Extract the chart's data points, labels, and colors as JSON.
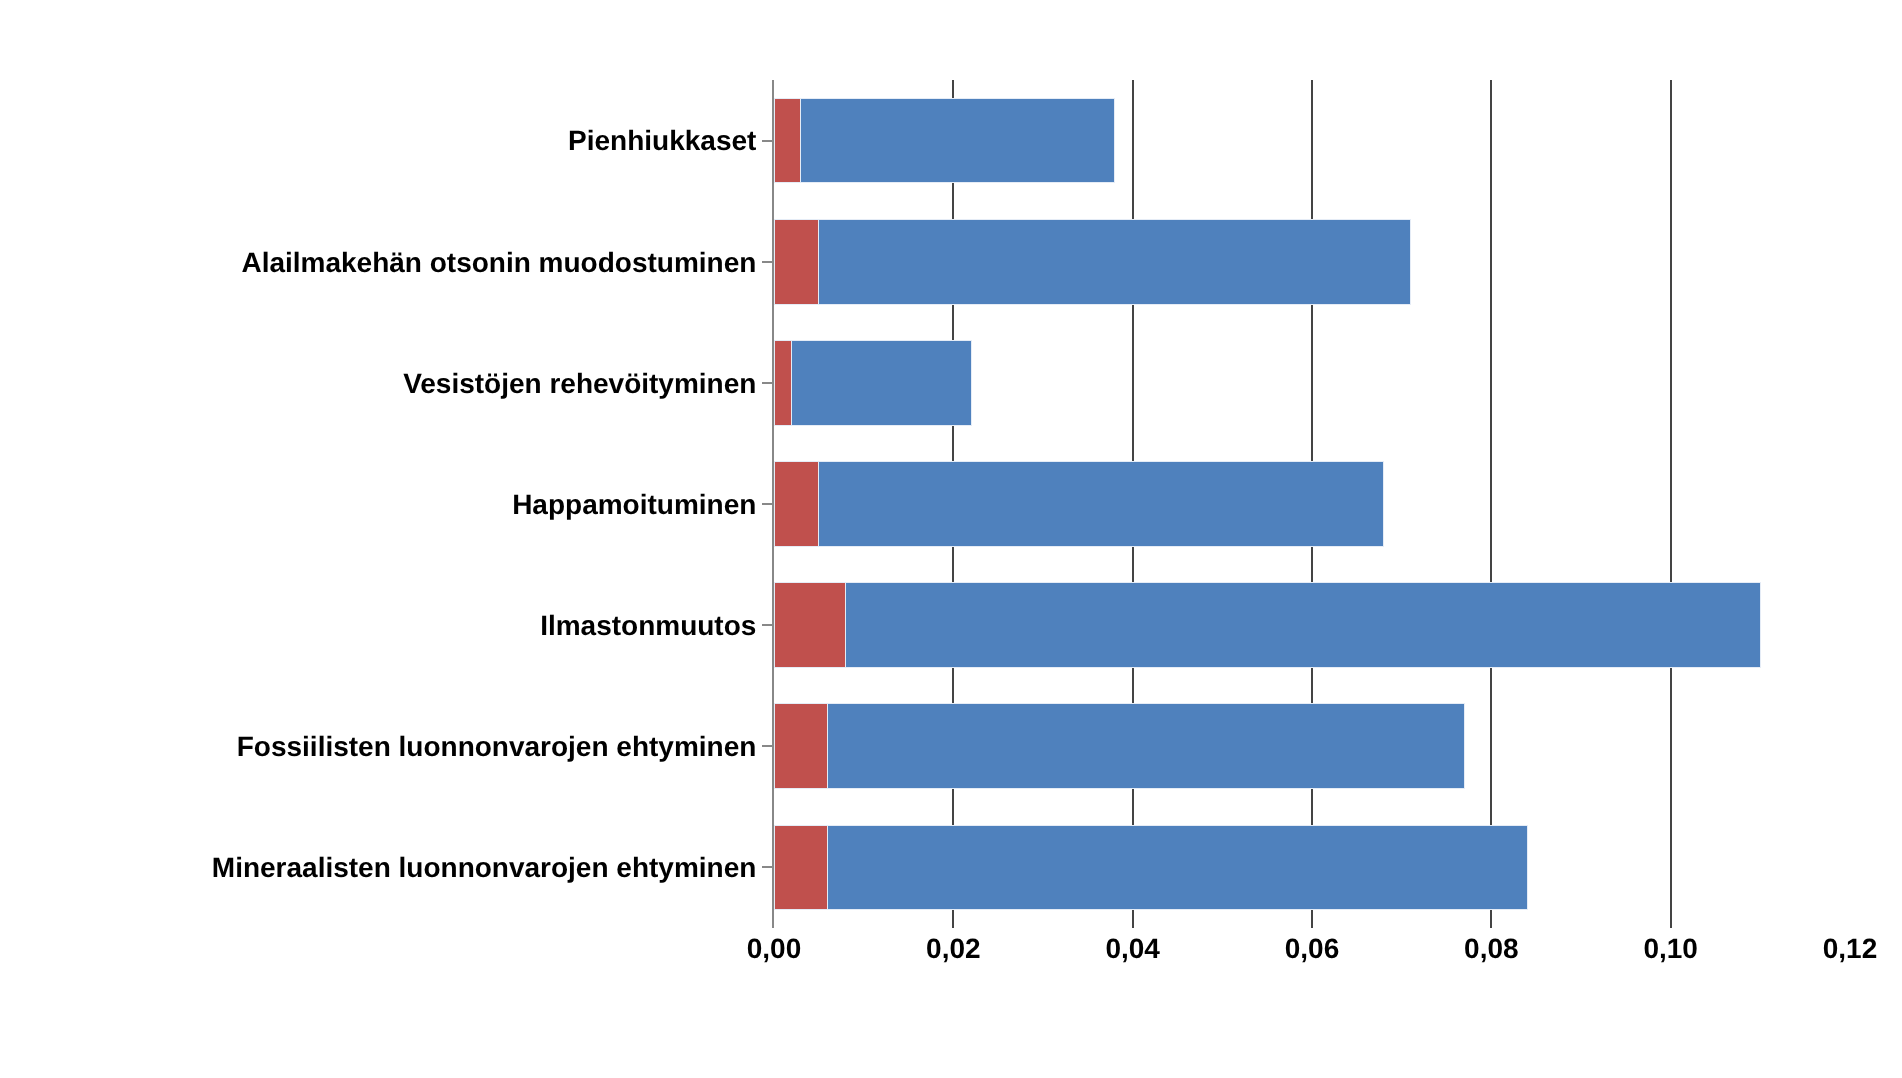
{
  "chart_data": {
    "type": "bar",
    "orientation": "horizontal",
    "stacked": true,
    "categories": [
      "Pienhiukkaset",
      "Alailmakehän otsonin muodostuminen",
      "Vesistöjen rehevöityminen",
      "Happamoituminen",
      "Ilmastonmuutos",
      "Fossiilisten luonnonvarojen ehtyminen",
      "Mineraalisten luonnonvarojen ehtyminen"
    ],
    "series": [
      {
        "color": "#c0504d",
        "values": [
          0.003,
          0.005,
          0.002,
          0.005,
          0.008,
          0.006,
          0.006
        ]
      },
      {
        "color": "#4f81bd",
        "values": [
          0.035,
          0.066,
          0.02,
          0.063,
          0.102,
          0.071,
          0.078
        ]
      }
    ],
    "xlim": [
      0,
      0.12
    ],
    "xticks": [
      {
        "value": 0,
        "label": "0,00"
      },
      {
        "value": 0.02,
        "label": "0,02"
      },
      {
        "value": 0.04,
        "label": "0,04"
      },
      {
        "value": 0.06,
        "label": "0,06"
      },
      {
        "value": 0.08,
        "label": "0,08"
      },
      {
        "value": 0.1,
        "label": "0,10"
      },
      {
        "value": 0.12,
        "label": "0,12"
      }
    ],
    "grid": "x"
  }
}
